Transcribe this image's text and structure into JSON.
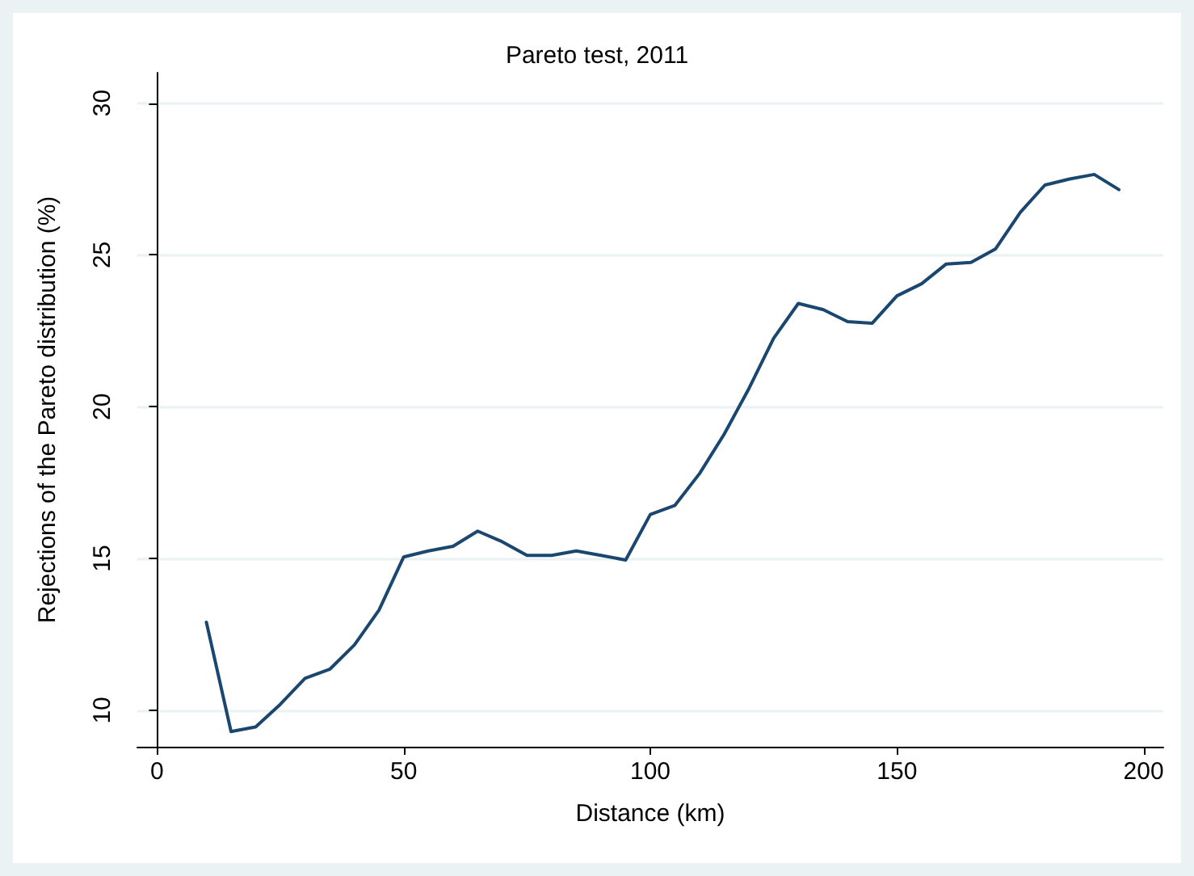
{
  "chart_data": {
    "type": "line",
    "title": "Pareto test, 2011",
    "xlabel": "Distance (km)",
    "ylabel": "Rejections of the Pareto distribution (%)",
    "x": [
      10,
      15,
      20,
      25,
      30,
      35,
      40,
      45,
      50,
      55,
      60,
      65,
      70,
      75,
      80,
      85,
      90,
      95,
      100,
      105,
      110,
      115,
      120,
      125,
      130,
      135,
      140,
      145,
      150,
      155,
      160,
      165,
      170,
      175,
      180,
      185,
      190,
      195
    ],
    "series": [
      {
        "color": "#1a476f",
        "values": [
          12.9,
          9.3,
          9.45,
          10.2,
          11.05,
          11.35,
          12.15,
          13.3,
          15.05,
          15.25,
          15.4,
          15.9,
          15.55,
          15.1,
          15.1,
          15.25,
          15.1,
          14.95,
          16.45,
          16.75,
          17.8,
          19.1,
          20.6,
          22.25,
          23.4,
          23.2,
          22.8,
          22.75,
          23.65,
          24.05,
          24.7,
          24.75,
          25.2,
          26.4,
          27.3,
          27.5,
          27.65,
          27.15
        ]
      }
    ],
    "xlim": [
      -4,
      204
    ],
    "xticks": [
      0,
      50,
      100,
      150,
      200
    ],
    "ylim": [
      8.8,
      31
    ],
    "yticks": [
      10,
      15,
      20,
      25,
      30
    ],
    "grid": "y",
    "marker": "none",
    "line_style": "solid"
  }
}
